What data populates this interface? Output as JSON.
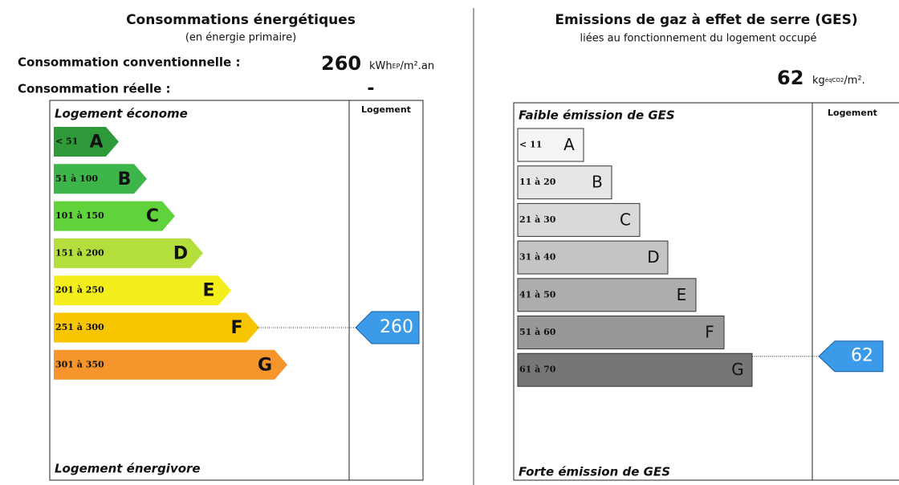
{
  "energy": {
    "title": "Consommations énergétiques",
    "subtitle": "(en énergie primaire)",
    "conventional_label": "Consommation conventionnelle :",
    "conventional_value": 260,
    "unit_main": "kWh",
    "unit_sub": "EP",
    "unit_rest": "/m².an",
    "real_label": "Consommation réelle :",
    "real_value": "-",
    "top_label": "Logement économe",
    "bottom_label": "Logement énergivore",
    "column_header": "Logement",
    "classes": [
      {
        "range": "< 51",
        "letter": "A"
      },
      {
        "range": "51 à 100",
        "letter": "B"
      },
      {
        "range": "101 à 150",
        "letter": "C"
      },
      {
        "range": "151 à 200",
        "letter": "D"
      },
      {
        "range": "201 à 250",
        "letter": "E"
      },
      {
        "range": "251 à 300",
        "letter": "F"
      },
      {
        "range": "301 à 350",
        "letter": "G"
      }
    ],
    "rating": 260
  },
  "ges": {
    "title": "Emissions de gaz à effet de serre (GES)",
    "subtitle": "liées au fonctionnement du logement occupé",
    "value": 62,
    "unit_main": "kg",
    "unit_sub": "éqCO2",
    "unit_rest": "/m².",
    "top_label": "Faible émission de GES",
    "bottom_label": "Forte émission de GES",
    "column_header": "Logement",
    "classes": [
      {
        "range": "< 11",
        "letter": "A"
      },
      {
        "range": "11 à 20",
        "letter": "B"
      },
      {
        "range": "21 à 30",
        "letter": "C"
      },
      {
        "range": "31 à 40",
        "letter": "D"
      },
      {
        "range": "41 à 50",
        "letter": "E"
      },
      {
        "range": "51 à 60",
        "letter": "F"
      },
      {
        "range": "61 à 70",
        "letter": "G"
      }
    ],
    "rating": 62
  }
}
